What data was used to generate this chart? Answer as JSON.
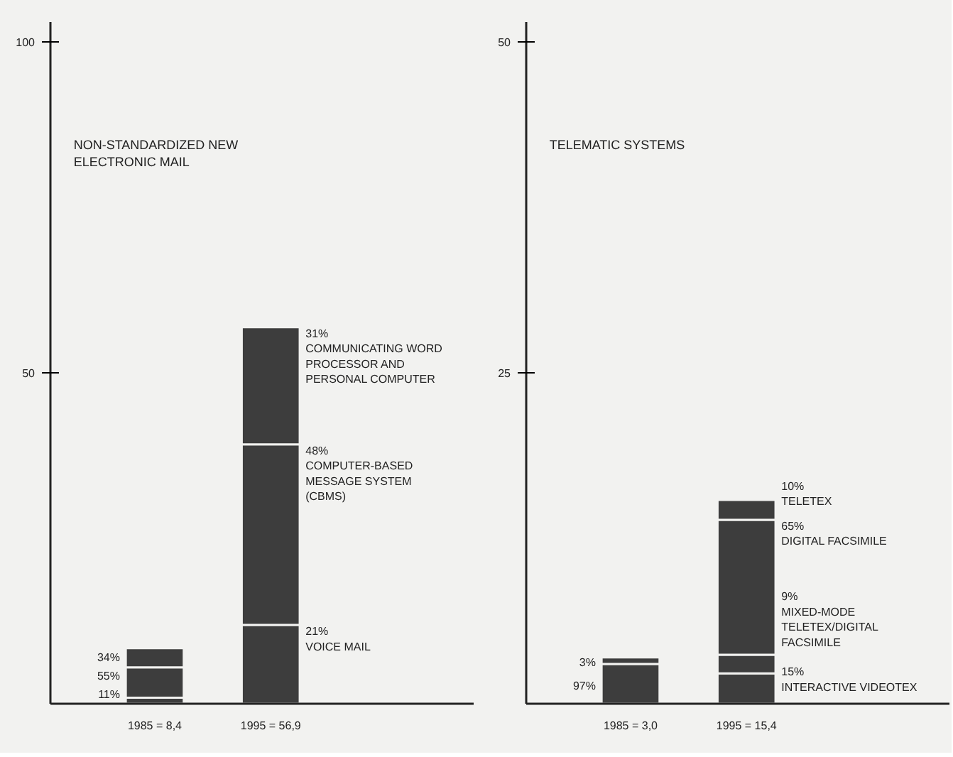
{
  "chart_data": [
    {
      "type": "bar",
      "stacked": true,
      "title": "NON-STANDARDIZED NEW ELECTRONIC MAIL",
      "categories": [
        "1985 = 8,4",
        "1995 = 56,9"
      ],
      "ylim": [
        0,
        103
      ],
      "yticks": [
        50,
        100
      ],
      "grid": false,
      "series": [
        {
          "name": "VOICE MAIL",
          "color": "#3d3d3d",
          "values": [
            0.9,
            11.9
          ]
        },
        {
          "name": "COMPUTER-BASED MESSAGE SYSTEM (CBMS)",
          "color": "#3d3d3d",
          "values": [
            4.6,
            27.3
          ]
        },
        {
          "name": "COMMUNICATING WORD PROCESSOR AND PERSONAL COMPUTER",
          "color": "#3d3d3d",
          "values": [
            2.9,
            17.7
          ]
        }
      ],
      "annotations": [
        "11%",
        "21%",
        "55%",
        "48%",
        "34%",
        "31%"
      ]
    },
    {
      "type": "bar",
      "stacked": true,
      "title": "TELEMATIC SYSTEMS",
      "categories": [
        "1985 = 3,0",
        "1995 = 15,4"
      ],
      "ylim": [
        0,
        51.5
      ],
      "yticks": [
        25,
        50
      ],
      "grid": false,
      "series": [
        {
          "name": "INTERACTIVE VIDEOTEX",
          "color": "#3d3d3d",
          "values": [
            null,
            2.3
          ]
        },
        {
          "name": "MIXED-MODE TELETEX/DIGITAL FACSIMILE",
          "color": "#3d3d3d",
          "values": [
            null,
            1.4
          ]
        },
        {
          "name": "DIGITAL FACSIMILE",
          "color": "#3d3d3d",
          "values": [
            3.0,
            10.2
          ]
        },
        {
          "name": "TELETEX",
          "color": "#3d3d3d",
          "values": [
            0.5,
            1.5
          ]
        }
      ],
      "annotations": [
        "15%",
        "9%",
        "97%",
        "65%",
        "3%",
        "10%"
      ]
    }
  ]
}
